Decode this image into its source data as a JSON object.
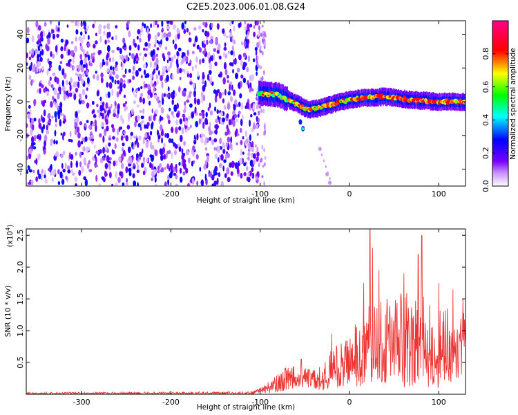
{
  "title": "C2E5.2023.006.01.08.G24",
  "charts": {
    "spectrogram": {
      "type": "heatmap",
      "xlabel": "Height of straight line (km)",
      "ylabel": "Frequency (Hz)",
      "xlim": [
        -362,
        130
      ],
      "ylim": [
        -50,
        48
      ],
      "x_ticks": [
        -300,
        -200,
        -100,
        0,
        100
      ],
      "y_ticks": [
        -40,
        -20,
        0,
        20,
        40
      ],
      "colorbar": {
        "label": "Normalized spectral amplitude",
        "range": [
          0,
          1
        ],
        "ticks": [
          "0.0",
          "0.2",
          "0.4",
          "0.6",
          "0.8"
        ],
        "tick_values": [
          0.0,
          0.2,
          0.4,
          0.6,
          0.8
        ],
        "colormap": [
          "#ffffff",
          "#8800ff",
          "#0000ff",
          "#00ffff",
          "#00ff00",
          "#ffff00",
          "#ff0000",
          "#ff0088"
        ]
      },
      "noise_region": {
        "x_range": [
          -362,
          -102
        ],
        "level": "low (0.05-0.3)"
      },
      "signal_ridge": [
        {
          "height": -102,
          "freq": 5
        },
        {
          "height": -80,
          "freq": 4
        },
        {
          "height": -60,
          "freq": -1
        },
        {
          "height": -45,
          "freq": -5
        },
        {
          "height": -30,
          "freq": -3
        },
        {
          "height": -10,
          "freq": 0
        },
        {
          "height": 10,
          "freq": 2
        },
        {
          "height": 40,
          "freq": 3
        },
        {
          "height": 70,
          "freq": 1
        },
        {
          "height": 100,
          "freq": 0
        },
        {
          "height": 130,
          "freq": 0
        }
      ],
      "faint_trail": [
        {
          "height": -55,
          "freq": -12
        },
        {
          "height": -52,
          "freq": -16
        },
        {
          "height": -33,
          "freq": -28
        },
        {
          "height": -25,
          "freq": -43
        },
        {
          "height": -22,
          "freq": -48
        }
      ]
    },
    "snr": {
      "type": "line",
      "xlabel": "Height of straight line (km)",
      "ylabel": "SNR (10 * v/v)",
      "scale_label": "(x10",
      "scale_exp": "4",
      "scale_close": ")",
      "xlim": [
        -362,
        130
      ],
      "ylim": [
        0,
        2.6
      ],
      "x_ticks": [
        -300,
        -200,
        -100,
        0,
        100
      ],
      "y_ticks": [
        0.5,
        1.0,
        1.5,
        2.0,
        2.5
      ],
      "y_tick_labels": [
        "0.5",
        "1.0",
        "1.5",
        "2.0",
        "2.5"
      ],
      "color": "#ee3333",
      "envelope": [
        {
          "x": -362,
          "lo": 0.0,
          "hi": 0.03
        },
        {
          "x": -110,
          "lo": 0.0,
          "hi": 0.04
        },
        {
          "x": -90,
          "lo": 0.02,
          "hi": 0.2
        },
        {
          "x": -70,
          "lo": 0.05,
          "hi": 0.45
        },
        {
          "x": -55,
          "lo": 0.1,
          "hi": 0.5
        },
        {
          "x": -40,
          "lo": 0.1,
          "hi": 0.4
        },
        {
          "x": -30,
          "lo": 0.05,
          "hi": 0.45
        },
        {
          "x": -20,
          "lo": 0.1,
          "hi": 0.8
        },
        {
          "x": 0,
          "lo": 0.1,
          "hi": 0.9
        },
        {
          "x": 20,
          "lo": 0.15,
          "hi": 1.5
        },
        {
          "x": 40,
          "lo": 0.1,
          "hi": 1.6
        },
        {
          "x": 60,
          "lo": 0.1,
          "hi": 1.6
        },
        {
          "x": 80,
          "lo": 0.1,
          "hi": 1.6
        },
        {
          "x": 100,
          "lo": 0.1,
          "hi": 1.4
        },
        {
          "x": 130,
          "lo": 0.3,
          "hi": 1.3
        }
      ],
      "peaks": [
        {
          "x": -110,
          "y": 0.05
        },
        {
          "x": -54,
          "y": 0.55
        },
        {
          "x": -20,
          "y": 0.95
        },
        {
          "x": 16,
          "y": 1.75
        },
        {
          "x": 23,
          "y": 2.6
        },
        {
          "x": 26,
          "y": 2.3
        },
        {
          "x": 33,
          "y": 1.95
        },
        {
          "x": 61,
          "y": 1.9
        },
        {
          "x": 77,
          "y": 2.2
        },
        {
          "x": 81,
          "y": 2.5
        },
        {
          "x": 100,
          "y": 1.75
        },
        {
          "x": 116,
          "y": 1.65
        },
        {
          "x": 127,
          "y": 1.5
        }
      ]
    }
  }
}
